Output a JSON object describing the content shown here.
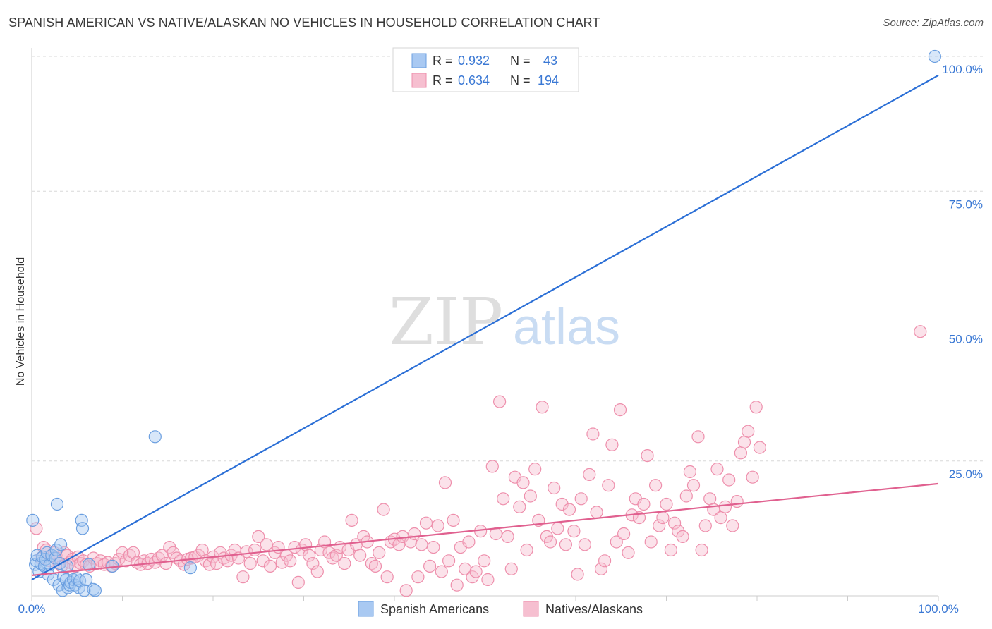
{
  "title": "SPANISH AMERICAN VS NATIVE/ALASKAN NO VEHICLES IN HOUSEHOLD CORRELATION CHART",
  "source": "Source: ZipAtlas.com",
  "watermark": {
    "zip": "ZIP",
    "atlas": "atlas"
  },
  "colors": {
    "blue_fill": "#a9c9f2",
    "blue_stroke": "#6b9fe0",
    "blue_line": "#2b6fd6",
    "pink_fill": "#f6bfd0",
    "pink_stroke": "#ee8fac",
    "pink_line": "#e0608f",
    "grid": "#d8d8d8",
    "axis_text": "#3a78d4"
  },
  "legend_stats": [
    {
      "r_label": "R =",
      "r_value": "0.932",
      "n_label": "N =",
      "n_value": "43"
    },
    {
      "r_label": "R =",
      "r_value": "0.634",
      "n_label": "N =",
      "n_value": "194"
    }
  ],
  "chart_data": {
    "type": "scatter",
    "title": "SPANISH AMERICAN VS NATIVE/ALASKAN NO VEHICLES IN HOUSEHOLD CORRELATION CHART",
    "xlabel": "",
    "ylabel": "No Vehicles in Household",
    "xlim": [
      0,
      100
    ],
    "ylim": [
      0,
      100
    ],
    "x_tick_labels": [
      "0.0%",
      "100.0%"
    ],
    "y_tick_labels": [
      {
        "value": 25,
        "label": "25.0%"
      },
      {
        "value": 50,
        "label": "50.0%"
      },
      {
        "value": 75,
        "label": "75.0%"
      },
      {
        "value": 100,
        "label": "100.0%"
      }
    ],
    "grid": true,
    "legend_position": "bottom-center",
    "series": [
      {
        "name": "Spanish Americans",
        "r": 0.932,
        "n": 43,
        "trend": [
          [
            0,
            3.0
          ],
          [
            100,
            96.5
          ]
        ],
        "points": [
          [
            0.1,
            14.0
          ],
          [
            0.4,
            5.8
          ],
          [
            0.5,
            6.5
          ],
          [
            0.6,
            7.5
          ],
          [
            0.8,
            4.5
          ],
          [
            1.0,
            6.0
          ],
          [
            1.2,
            7.2
          ],
          [
            1.4,
            5.5
          ],
          [
            1.5,
            6.8
          ],
          [
            1.7,
            8.0
          ],
          [
            1.8,
            4.0
          ],
          [
            2.0,
            5.8
          ],
          [
            2.2,
            7.5
          ],
          [
            2.4,
            3.0
          ],
          [
            2.6,
            7.0
          ],
          [
            2.7,
            8.5
          ],
          [
            2.8,
            17.0
          ],
          [
            3.0,
            2.0
          ],
          [
            3.1,
            6.0
          ],
          [
            3.2,
            9.5
          ],
          [
            3.4,
            1.0
          ],
          [
            3.5,
            3.5
          ],
          [
            3.8,
            3.0
          ],
          [
            3.9,
            5.5
          ],
          [
            4.0,
            1.5
          ],
          [
            4.2,
            2.0
          ],
          [
            4.3,
            2.5
          ],
          [
            4.6,
            3.0
          ],
          [
            4.8,
            2.0
          ],
          [
            5.0,
            3.2
          ],
          [
            5.2,
            1.5
          ],
          [
            5.3,
            2.8
          ],
          [
            5.5,
            14.0
          ],
          [
            5.6,
            12.5
          ],
          [
            5.8,
            1.0
          ],
          [
            6.0,
            3.0
          ],
          [
            6.3,
            5.8
          ],
          [
            6.8,
            1.2
          ],
          [
            7.0,
            1.0
          ],
          [
            8.9,
            5.5
          ],
          [
            13.6,
            29.5
          ],
          [
            17.5,
            5.2
          ],
          [
            99.6,
            100.0
          ]
        ]
      },
      {
        "name": "Natives/Alaskans",
        "r": 0.634,
        "n": 194,
        "trend": [
          [
            0,
            3.8
          ],
          [
            100,
            20.8
          ]
        ],
        "points": [
          [
            0.5,
            12.5
          ],
          [
            1.0,
            7.0
          ],
          [
            1.3,
            9.0
          ],
          [
            1.6,
            8.5
          ],
          [
            2.0,
            6.5
          ],
          [
            2.2,
            7.5
          ],
          [
            2.5,
            8.0
          ],
          [
            2.8,
            7.0
          ],
          [
            3.0,
            6.0
          ],
          [
            3.3,
            5.5
          ],
          [
            3.6,
            8.0
          ],
          [
            3.9,
            7.5
          ],
          [
            4.2,
            6.2
          ],
          [
            4.5,
            6.8
          ],
          [
            4.8,
            5.5
          ],
          [
            5.1,
            7.2
          ],
          [
            5.4,
            6.0
          ],
          [
            5.7,
            6.5
          ],
          [
            6.0,
            5.8
          ],
          [
            6.4,
            5.5
          ],
          [
            6.8,
            7.0
          ],
          [
            7.2,
            6.0
          ],
          [
            7.6,
            6.5
          ],
          [
            8.0,
            5.8
          ],
          [
            8.4,
            6.2
          ],
          [
            8.8,
            5.5
          ],
          [
            9.2,
            6.0
          ],
          [
            9.6,
            6.8
          ],
          [
            10.0,
            8.0
          ],
          [
            10.4,
            6.5
          ],
          [
            10.8,
            7.5
          ],
          [
            11.2,
            8.0
          ],
          [
            11.6,
            6.2
          ],
          [
            12.0,
            5.8
          ],
          [
            12.4,
            6.5
          ],
          [
            12.8,
            6.0
          ],
          [
            13.2,
            6.8
          ],
          [
            13.6,
            6.2
          ],
          [
            14.0,
            7.0
          ],
          [
            14.4,
            7.5
          ],
          [
            14.8,
            6.0
          ],
          [
            15.2,
            9.0
          ],
          [
            15.6,
            8.0
          ],
          [
            16.0,
            7.0
          ],
          [
            16.4,
            6.5
          ],
          [
            16.8,
            5.8
          ],
          [
            17.2,
            6.8
          ],
          [
            17.6,
            7.0
          ],
          [
            18.0,
            7.2
          ],
          [
            18.4,
            7.5
          ],
          [
            18.8,
            8.5
          ],
          [
            19.2,
            6.5
          ],
          [
            19.6,
            5.8
          ],
          [
            20.0,
            7.2
          ],
          [
            20.4,
            6.0
          ],
          [
            20.8,
            8.0
          ],
          [
            21.2,
            7.0
          ],
          [
            21.6,
            6.5
          ],
          [
            22.0,
            7.5
          ],
          [
            22.4,
            8.5
          ],
          [
            22.8,
            7.0
          ],
          [
            23.3,
            3.5
          ],
          [
            23.7,
            8.2
          ],
          [
            24.1,
            6.0
          ],
          [
            24.6,
            8.5
          ],
          [
            25.0,
            11.0
          ],
          [
            25.5,
            6.5
          ],
          [
            25.9,
            9.5
          ],
          [
            26.3,
            5.5
          ],
          [
            26.8,
            8.0
          ],
          [
            27.2,
            9.0
          ],
          [
            27.6,
            6.2
          ],
          [
            28.1,
            7.5
          ],
          [
            28.5,
            6.5
          ],
          [
            29.0,
            9.0
          ],
          [
            29.4,
            2.5
          ],
          [
            29.8,
            8.5
          ],
          [
            30.2,
            9.5
          ],
          [
            30.6,
            7.5
          ],
          [
            31.0,
            6.0
          ],
          [
            31.5,
            4.5
          ],
          [
            31.9,
            8.5
          ],
          [
            32.3,
            10.0
          ],
          [
            32.8,
            8.0
          ],
          [
            33.2,
            7.0
          ],
          [
            33.6,
            7.5
          ],
          [
            34.0,
            9.0
          ],
          [
            34.5,
            6.0
          ],
          [
            34.9,
            8.5
          ],
          [
            35.3,
            14.0
          ],
          [
            35.8,
            9.5
          ],
          [
            36.2,
            7.5
          ],
          [
            36.6,
            11.0
          ],
          [
            37.0,
            10.0
          ],
          [
            37.5,
            6.0
          ],
          [
            37.9,
            5.5
          ],
          [
            38.3,
            8.0
          ],
          [
            38.8,
            16.0
          ],
          [
            39.2,
            3.5
          ],
          [
            39.6,
            10.0
          ],
          [
            40.0,
            10.5
          ],
          [
            40.5,
            9.5
          ],
          [
            40.9,
            11.0
          ],
          [
            41.3,
            1.0
          ],
          [
            41.8,
            10.0
          ],
          [
            42.2,
            11.5
          ],
          [
            42.6,
            3.5
          ],
          [
            43.0,
            9.5
          ],
          [
            43.5,
            13.5
          ],
          [
            43.9,
            5.5
          ],
          [
            44.3,
            9.0
          ],
          [
            44.8,
            13.0
          ],
          [
            45.2,
            4.5
          ],
          [
            45.6,
            21.0
          ],
          [
            46.0,
            6.5
          ],
          [
            46.5,
            14.0
          ],
          [
            46.9,
            2.0
          ],
          [
            47.3,
            9.0
          ],
          [
            47.8,
            5.0
          ],
          [
            48.2,
            10.0
          ],
          [
            48.6,
            3.5
          ],
          [
            49.0,
            4.5
          ],
          [
            49.5,
            12.0
          ],
          [
            49.9,
            6.5
          ],
          [
            50.3,
            3.0
          ],
          [
            50.8,
            24.0
          ],
          [
            51.2,
            11.5
          ],
          [
            51.6,
            36.0
          ],
          [
            52.0,
            18.0
          ],
          [
            52.5,
            11.0
          ],
          [
            52.9,
            5.0
          ],
          [
            53.3,
            22.0
          ],
          [
            53.8,
            16.5
          ],
          [
            54.2,
            21.0
          ],
          [
            54.6,
            8.5
          ],
          [
            55.0,
            18.5
          ],
          [
            55.5,
            23.5
          ],
          [
            55.9,
            14.0
          ],
          [
            56.3,
            35.0
          ],
          [
            56.8,
            11.0
          ],
          [
            57.2,
            10.0
          ],
          [
            57.6,
            20.0
          ],
          [
            58.0,
            12.5
          ],
          [
            58.5,
            17.0
          ],
          [
            58.9,
            9.5
          ],
          [
            59.3,
            16.0
          ],
          [
            59.8,
            12.0
          ],
          [
            60.2,
            4.0
          ],
          [
            60.6,
            18.0
          ],
          [
            61.0,
            9.5
          ],
          [
            61.5,
            22.5
          ],
          [
            61.9,
            30.0
          ],
          [
            62.3,
            15.5
          ],
          [
            62.8,
            5.0
          ],
          [
            63.2,
            6.5
          ],
          [
            63.6,
            20.5
          ],
          [
            64.0,
            28.0
          ],
          [
            64.5,
            10.0
          ],
          [
            64.9,
            34.5
          ],
          [
            65.3,
            11.5
          ],
          [
            65.8,
            8.0
          ],
          [
            66.2,
            15.0
          ],
          [
            66.6,
            18.0
          ],
          [
            67.0,
            14.5
          ],
          [
            67.5,
            17.0
          ],
          [
            67.9,
            26.0
          ],
          [
            68.3,
            10.0
          ],
          [
            68.8,
            20.5
          ],
          [
            69.2,
            13.0
          ],
          [
            69.6,
            14.5
          ],
          [
            70.0,
            17.0
          ],
          [
            70.5,
            8.5
          ],
          [
            70.9,
            13.5
          ],
          [
            71.3,
            12.0
          ],
          [
            71.8,
            11.0
          ],
          [
            72.2,
            18.5
          ],
          [
            72.6,
            23.0
          ],
          [
            73.0,
            20.5
          ],
          [
            73.5,
            29.5
          ],
          [
            73.9,
            8.5
          ],
          [
            74.3,
            13.0
          ],
          [
            74.8,
            18.0
          ],
          [
            75.2,
            16.0
          ],
          [
            75.6,
            23.5
          ],
          [
            76.0,
            14.5
          ],
          [
            76.5,
            16.5
          ],
          [
            76.9,
            21.5
          ],
          [
            77.3,
            13.0
          ],
          [
            77.8,
            17.5
          ],
          [
            78.2,
            26.5
          ],
          [
            78.6,
            28.5
          ],
          [
            79.0,
            30.5
          ],
          [
            79.5,
            22.0
          ],
          [
            79.9,
            35.0
          ],
          [
            80.3,
            27.5
          ],
          [
            98.0,
            49.0
          ]
        ]
      }
    ]
  }
}
